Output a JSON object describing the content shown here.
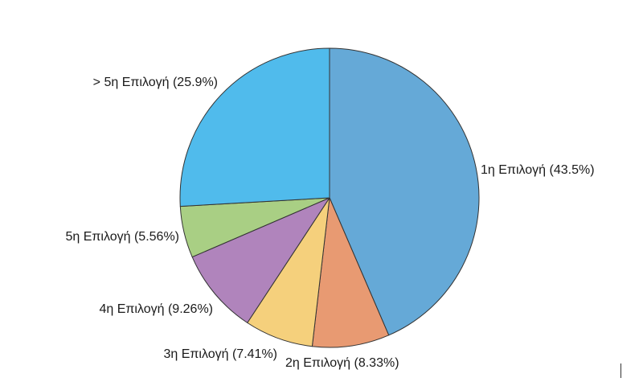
{
  "chart_data": {
    "type": "pie",
    "title": "",
    "slices": [
      {
        "label": "1η Επιλογή (43.5%)",
        "value": 43.5,
        "color": "#65a9d7"
      },
      {
        "label": "2η Επιλογή (8.33%)",
        "value": 8.33,
        "color": "#e89a72"
      },
      {
        "label": "3η Επιλογή (7.41%)",
        "value": 7.41,
        "color": "#f5d07c"
      },
      {
        "label": "4η Επιλογή (9.26%)",
        "value": 9.26,
        "color": "#b084bc"
      },
      {
        "label": "5η Επιλογή (5.56%)",
        "value": 5.56,
        "color": "#a9cf84"
      },
      {
        "label": "> 5η Επιλογή (25.9%)",
        "value": 25.9,
        "color": "#50bbec"
      }
    ],
    "start_angle": "12 o'clock",
    "direction": "clockwise",
    "outline_color": "#333333",
    "legend": "none"
  }
}
